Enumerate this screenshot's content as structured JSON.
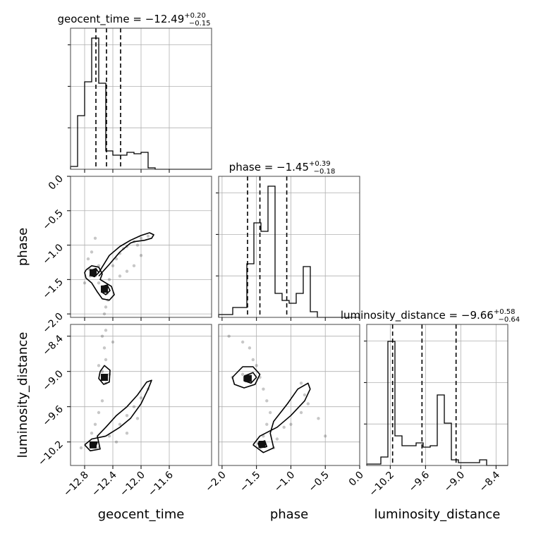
{
  "chart_data": {
    "type": "corner",
    "parameters": [
      {
        "key": "geocent_time",
        "label": "geocent_time",
        "range": [
          -13.0,
          -11.0
        ],
        "ticks": [
          -12.8,
          -12.4,
          -12.0,
          -11.6
        ],
        "tick_labels": [
          "−12.8",
          "−12.4",
          "−12.0",
          "−11.6"
        ],
        "title": "geocent_time = −12.49",
        "title_sup": "+0.20",
        "title_sub": "−0.15",
        "quantiles": [
          -12.64,
          -12.49,
          -12.29
        ],
        "hist": [
          0.02,
          0.38,
          0.62,
          0.93,
          0.61,
          0.13,
          0.1,
          0.1,
          0.12,
          0.11,
          0.12,
          0.01,
          0,
          0,
          0,
          0,
          0,
          0,
          0,
          0
        ]
      },
      {
        "key": "phase",
        "label": "phase",
        "range": [
          -2.05,
          0.0
        ],
        "ticks": [
          -2.0,
          -1.5,
          -1.0,
          -0.5,
          0.0
        ],
        "tick_labels": [
          "−2.0",
          "−1.5",
          "−1.0",
          "−0.5",
          "0.0"
        ],
        "title": "phase = −1.45",
        "title_sup": "+0.39",
        "title_sub": "−0.18",
        "quantiles": [
          -1.63,
          -1.45,
          -1.06
        ],
        "hist": [
          0.02,
          0.02,
          0.07,
          0.07,
          0.38,
          0.67,
          0.61,
          0.93,
          0.17,
          0.12,
          0.1,
          0.17,
          0.36,
          0.04,
          0,
          0,
          0,
          0,
          0,
          0
        ]
      },
      {
        "key": "luminosity_distance",
        "label": "luminosity_distance",
        "range": [
          -10.6,
          -8.2
        ],
        "ticks": [
          -10.2,
          -9.6,
          -9.0,
          -8.4
        ],
        "tick_labels": [
          "−10.2",
          "−9.6",
          "−9.0",
          "−8.4"
        ],
        "title": "luminosity_distance = −9.66",
        "title_sup": "+0.58",
        "title_sub": "−0.64",
        "quantiles": [
          -10.16,
          -9.66,
          -9.08
        ],
        "hist": [
          0.01,
          0.01,
          0.06,
          0.88,
          0.21,
          0.14,
          0.14,
          0.16,
          0.13,
          0.14,
          0.5,
          0.3,
          0.04,
          0.02,
          0.02,
          0.02,
          0.04,
          0,
          0,
          0
        ]
      }
    ],
    "axis_labels": {
      "x": [
        "geocent_time",
        "phase",
        "luminosity_distance"
      ],
      "y": [
        "phase",
        "luminosity_distance"
      ]
    },
    "scatter": {
      "phase_vs_geocent_time": [
        [
          -12.74,
          -1.35
        ],
        [
          -12.72,
          -1.45
        ],
        [
          -12.7,
          -1.4
        ],
        [
          -12.65,
          -1.38
        ],
        [
          -12.6,
          -1.55
        ],
        [
          -12.55,
          -1.6
        ],
        [
          -12.5,
          -1.62
        ],
        [
          -12.48,
          -1.7
        ],
        [
          -12.47,
          -1.8
        ],
        [
          -12.5,
          -1.9
        ],
        [
          -12.52,
          -2.0
        ],
        [
          -12.45,
          -1.5
        ],
        [
          -12.4,
          -1.3
        ],
        [
          -12.35,
          -1.2
        ],
        [
          -12.3,
          -1.12
        ],
        [
          -12.2,
          -1.02
        ],
        [
          -12.1,
          -0.95
        ],
        [
          -12.0,
          -0.9
        ],
        [
          -11.9,
          -0.87
        ],
        [
          -12.25,
          -1.05
        ],
        [
          -12.05,
          -1.0
        ],
        [
          -12.0,
          -1.15
        ],
        [
          -12.1,
          -1.3
        ],
        [
          -12.2,
          -1.38
        ],
        [
          -12.3,
          -1.45
        ],
        [
          -12.6,
          -1.3
        ],
        [
          -12.75,
          -1.2
        ],
        [
          -12.7,
          -1.1
        ],
        [
          -12.8,
          -1.55
        ],
        [
          -12.65,
          -0.9
        ]
      ],
      "luminosity_distance_vs_geocent_time": [
        [
          -12.55,
          -8.4
        ],
        [
          -12.52,
          -8.6
        ],
        [
          -12.5,
          -8.8
        ],
        [
          -12.55,
          -9.0
        ],
        [
          -12.5,
          -9.2
        ],
        [
          -12.55,
          -9.5
        ],
        [
          -12.6,
          -9.7
        ],
        [
          -12.65,
          -9.9
        ],
        [
          -12.7,
          -10.05
        ],
        [
          -12.72,
          -10.25
        ],
        [
          -12.6,
          -10.3
        ],
        [
          -12.45,
          -10.1
        ],
        [
          -12.3,
          -9.9
        ],
        [
          -12.2,
          -9.75
        ],
        [
          -12.1,
          -9.6
        ],
        [
          -12.0,
          -9.45
        ],
        [
          -11.9,
          -9.3
        ],
        [
          -12.35,
          -10.2
        ],
        [
          -12.2,
          -10.05
        ],
        [
          -12.05,
          -9.8
        ],
        [
          -12.5,
          -8.3
        ],
        [
          -12.45,
          -9.05
        ],
        [
          -12.6,
          -8.9
        ],
        [
          -12.85,
          -10.3
        ],
        [
          -12.4,
          -8.5
        ]
      ],
      "luminosity_distance_vs_phase": [
        [
          -1.9,
          -8.4
        ],
        [
          -1.7,
          -8.5
        ],
        [
          -1.55,
          -8.8
        ],
        [
          -1.5,
          -8.9
        ],
        [
          -1.45,
          -9.1
        ],
        [
          -1.4,
          -9.3
        ],
        [
          -1.35,
          -9.5
        ],
        [
          -1.3,
          -9.7
        ],
        [
          -1.35,
          -9.9
        ],
        [
          -1.4,
          -10.1
        ],
        [
          -1.45,
          -10.25
        ],
        [
          -1.2,
          -10.15
        ],
        [
          -1.0,
          -9.9
        ],
        [
          -0.85,
          -9.7
        ],
        [
          -0.8,
          -9.4
        ],
        [
          -0.85,
          -9.2
        ],
        [
          -1.1,
          -9.95
        ],
        [
          -1.7,
          -9.05
        ],
        [
          -1.85,
          -9.1
        ],
        [
          -0.6,
          -9.8
        ],
        [
          -0.75,
          -9.55
        ],
        [
          -1.6,
          -8.6
        ],
        [
          -1.25,
          -10.3
        ],
        [
          -0.5,
          -10.1
        ]
      ]
    },
    "contours": {
      "phase_vs_geocent_time": [
        [
          [
            -12.78,
            -1.36
          ],
          [
            -12.7,
            -1.3
          ],
          [
            -12.6,
            -1.32
          ],
          [
            -12.55,
            -1.42
          ],
          [
            -12.58,
            -1.5
          ],
          [
            -12.5,
            -1.55
          ],
          [
            -12.42,
            -1.6
          ],
          [
            -12.38,
            -1.72
          ],
          [
            -12.45,
            -1.8
          ],
          [
            -12.55,
            -1.78
          ],
          [
            -12.62,
            -1.68
          ],
          [
            -12.7,
            -1.55
          ],
          [
            -12.78,
            -1.48
          ],
          [
            -12.8,
            -1.4
          ],
          [
            -12.78,
            -1.36
          ]
        ],
        [
          [
            -12.72,
            -1.37
          ],
          [
            -12.64,
            -1.34
          ],
          [
            -12.6,
            -1.4
          ],
          [
            -12.66,
            -1.46
          ],
          [
            -12.72,
            -1.44
          ],
          [
            -12.72,
            -1.37
          ]
        ],
        [
          [
            -12.56,
            -1.6
          ],
          [
            -12.48,
            -1.58
          ],
          [
            -12.44,
            -1.66
          ],
          [
            -12.5,
            -1.72
          ],
          [
            -12.56,
            -1.68
          ],
          [
            -12.56,
            -1.6
          ]
        ],
        [
          [
            -12.6,
            -1.4
          ],
          [
            -12.45,
            -1.15
          ],
          [
            -12.3,
            -1.02
          ],
          [
            -12.15,
            -0.93
          ],
          [
            -12.0,
            -0.86
          ],
          [
            -11.88,
            -0.82
          ],
          [
            -11.82,
            -0.85
          ],
          [
            -11.85,
            -0.9
          ],
          [
            -11.95,
            -0.93
          ],
          [
            -12.1,
            -0.95
          ],
          [
            -12.15,
            -0.97
          ],
          [
            -12.3,
            -1.1
          ],
          [
            -12.45,
            -1.28
          ],
          [
            -12.6,
            -1.45
          ]
        ]
      ],
      "luminosity_distance_vs_geocent_time": [
        [
          [
            -12.58,
            -9.0
          ],
          [
            -12.52,
            -8.9
          ],
          [
            -12.44,
            -8.98
          ],
          [
            -12.45,
            -9.18
          ],
          [
            -12.53,
            -9.22
          ],
          [
            -12.6,
            -9.12
          ],
          [
            -12.58,
            -9.0
          ]
        ],
        [
          [
            -12.55,
            -9.05
          ],
          [
            -12.48,
            -9.05
          ],
          [
            -12.5,
            -9.15
          ],
          [
            -12.56,
            -9.12
          ],
          [
            -12.55,
            -9.05
          ]
        ],
        [
          [
            -12.8,
            -10.25
          ],
          [
            -12.7,
            -10.15
          ],
          [
            -12.5,
            -10.1
          ],
          [
            -12.3,
            -9.95
          ],
          [
            -12.15,
            -9.8
          ],
          [
            -12.0,
            -9.55
          ],
          [
            -11.9,
            -9.3
          ],
          [
            -11.85,
            -9.15
          ],
          [
            -11.92,
            -9.18
          ],
          [
            -12.05,
            -9.4
          ],
          [
            -12.2,
            -9.6
          ],
          [
            -12.35,
            -9.75
          ],
          [
            -12.5,
            -9.95
          ],
          [
            -12.62,
            -10.1
          ],
          [
            -12.58,
            -10.32
          ],
          [
            -12.72,
            -10.35
          ],
          [
            -12.8,
            -10.25
          ]
        ],
        [
          [
            -12.72,
            -10.22
          ],
          [
            -12.62,
            -10.2
          ],
          [
            -12.65,
            -10.3
          ],
          [
            -12.72,
            -10.28
          ],
          [
            -12.72,
            -10.22
          ]
        ]
      ],
      "luminosity_distance_vs_phase": [
        [
          [
            -1.85,
            -9.1
          ],
          [
            -1.7,
            -8.92
          ],
          [
            -1.55,
            -8.92
          ],
          [
            -1.45,
            -9.05
          ],
          [
            -1.52,
            -9.22
          ],
          [
            -1.68,
            -9.28
          ],
          [
            -1.82,
            -9.22
          ],
          [
            -1.85,
            -9.1
          ]
        ],
        [
          [
            -1.68,
            -9.08
          ],
          [
            -1.55,
            -9.02
          ],
          [
            -1.5,
            -9.1
          ],
          [
            -1.58,
            -9.2
          ],
          [
            -1.68,
            -9.16
          ],
          [
            -1.68,
            -9.08
          ]
        ],
        [
          [
            -1.55,
            -10.25
          ],
          [
            -1.45,
            -10.1
          ],
          [
            -1.2,
            -9.95
          ],
          [
            -1.0,
            -9.75
          ],
          [
            -0.8,
            -9.5
          ],
          [
            -0.72,
            -9.3
          ],
          [
            -0.75,
            -9.2
          ],
          [
            -0.9,
            -9.3
          ],
          [
            -1.05,
            -9.55
          ],
          [
            -1.25,
            -9.85
          ],
          [
            -1.3,
            -10.05
          ],
          [
            -1.25,
            -10.3
          ],
          [
            -1.4,
            -10.38
          ],
          [
            -1.55,
            -10.25
          ]
        ],
        [
          [
            -1.48,
            -10.22
          ],
          [
            -1.38,
            -10.18
          ],
          [
            -1.35,
            -10.28
          ],
          [
            -1.45,
            -10.3
          ],
          [
            -1.48,
            -10.22
          ]
        ]
      ]
    },
    "dark_cores": {
      "phase_vs_geocent_time": [
        [
          -12.68,
          -1.4
        ],
        [
          -12.52,
          -1.64
        ]
      ],
      "luminosity_distance_vs_geocent_time": [
        [
          -12.52,
          -9.1
        ],
        [
          -12.68,
          -10.25
        ]
      ],
      "luminosity_distance_vs_phase": [
        [
          -1.62,
          -9.12
        ],
        [
          -1.42,
          -10.24
        ]
      ]
    }
  }
}
